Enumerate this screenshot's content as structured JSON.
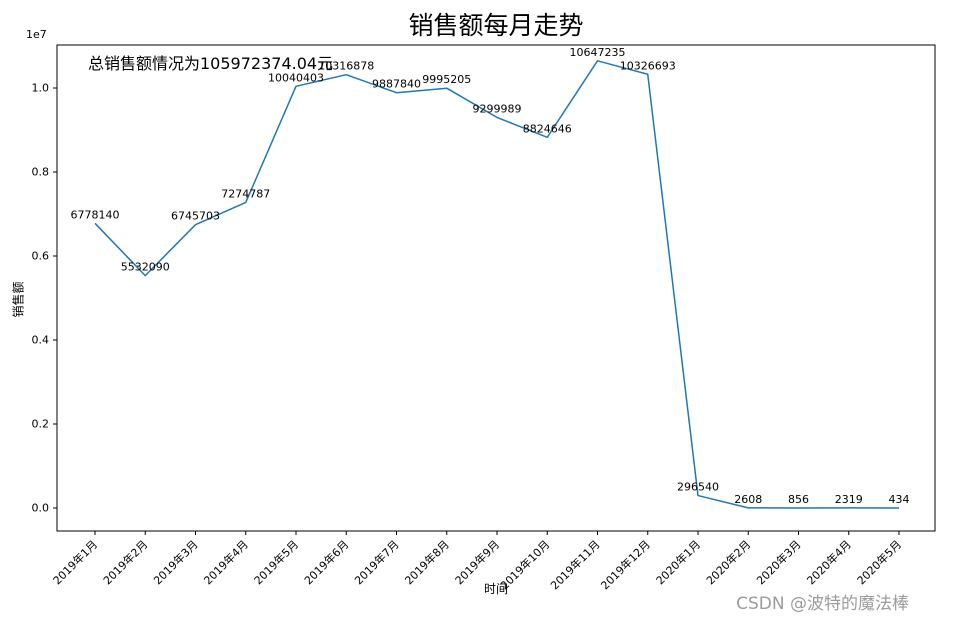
{
  "figure": {
    "annotation": "总销售额情况为105972374.04元",
    "watermark": "CSDN @波特的魔法棒"
  },
  "chart_data": {
    "type": "line",
    "title": "销售额每月走势",
    "xlabel": "时间",
    "ylabel": "销售额",
    "y_offset_label": "1e7",
    "categories": [
      "2019年1月",
      "2019年2月",
      "2019年3月",
      "2019年4月",
      "2019年5月",
      "2019年6月",
      "2019年7月",
      "2019年8月",
      "2019年9月",
      "2019年10月",
      "2019年11月",
      "2019年12月",
      "2020年1月",
      "2020年2月",
      "2020年3月",
      "2020年4月",
      "2020年5月"
    ],
    "values": [
      6778140,
      5532090,
      6745703,
      7274787,
      10040403,
      10316878,
      9887840,
      9995205,
      9299989,
      8824646,
      10647235,
      10326693,
      296540,
      2608,
      856,
      2319,
      434
    ],
    "point_labels": [
      "6778140",
      "5532090",
      "6745703",
      "7274787",
      "10040403",
      "10316878",
      "9887840",
      "9995205",
      "9299989",
      "8824646",
      "10647235",
      "10326693",
      "296540",
      "2608",
      "856",
      "2319",
      "434"
    ],
    "ytick_labels": [
      "0.0",
      "0.2",
      "0.4",
      "0.6",
      "0.8",
      "1.0"
    ],
    "ytick_values": [
      0,
      2000000,
      4000000,
      6000000,
      8000000,
      10000000
    ],
    "ylim": [
      -550000,
      11020000
    ],
    "line_color": "#1f77b4",
    "grid": false,
    "legend": "none"
  }
}
